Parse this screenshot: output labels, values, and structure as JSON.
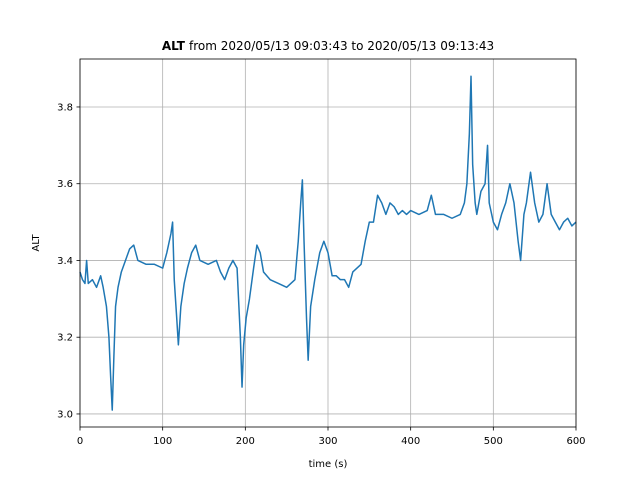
{
  "chart_data": {
    "type": "line",
    "title": {
      "bold": "ALT",
      "rest": "from 2020/05/13 09:03:43 to 2020/05/13 09:13:43"
    },
    "xlabel": "time (s)",
    "ylabel": "ALT",
    "x": [
      0,
      3,
      6,
      8,
      10,
      15,
      20,
      25,
      28,
      32,
      35,
      37,
      39,
      41,
      43,
      46,
      50,
      55,
      60,
      65,
      70,
      80,
      90,
      100,
      105,
      110,
      112,
      114,
      117,
      119,
      122,
      126,
      130,
      135,
      140,
      145,
      155,
      165,
      170,
      175,
      180,
      185,
      190,
      194,
      196,
      198,
      201,
      205,
      210,
      214,
      218,
      222,
      230,
      240,
      250,
      260,
      264,
      267,
      269,
      271,
      274,
      276,
      279,
      284,
      290,
      295,
      300,
      305,
      310,
      315,
      320,
      325,
      330,
      340,
      345,
      350,
      355,
      360,
      365,
      370,
      375,
      380,
      385,
      390,
      395,
      400,
      410,
      420,
      425,
      430,
      440,
      450,
      460,
      465,
      468,
      471,
      473,
      475,
      478,
      480,
      485,
      490,
      493,
      495,
      500,
      505,
      510,
      515,
      520,
      525,
      530,
      533,
      537,
      540,
      545,
      550,
      555,
      560,
      565,
      570,
      575,
      580,
      585,
      590,
      595,
      600
    ],
    "series": [
      {
        "name": "ALT",
        "color": "#1f77b4",
        "values": [
          3.37,
          3.35,
          3.34,
          3.4,
          3.34,
          3.35,
          3.33,
          3.36,
          3.33,
          3.28,
          3.2,
          3.1,
          3.01,
          3.15,
          3.28,
          3.33,
          3.37,
          3.4,
          3.43,
          3.44,
          3.4,
          3.39,
          3.39,
          3.38,
          3.42,
          3.47,
          3.5,
          3.35,
          3.25,
          3.18,
          3.28,
          3.34,
          3.38,
          3.42,
          3.44,
          3.4,
          3.39,
          3.4,
          3.37,
          3.35,
          3.38,
          3.4,
          3.38,
          3.2,
          3.07,
          3.18,
          3.25,
          3.3,
          3.38,
          3.44,
          3.42,
          3.37,
          3.35,
          3.34,
          3.33,
          3.35,
          3.45,
          3.55,
          3.61,
          3.45,
          3.25,
          3.14,
          3.28,
          3.35,
          3.42,
          3.45,
          3.42,
          3.36,
          3.36,
          3.35,
          3.35,
          3.33,
          3.37,
          3.39,
          3.45,
          3.5,
          3.5,
          3.57,
          3.55,
          3.52,
          3.55,
          3.54,
          3.52,
          3.53,
          3.52,
          3.53,
          3.52,
          3.53,
          3.57,
          3.52,
          3.52,
          3.51,
          3.52,
          3.55,
          3.6,
          3.73,
          3.88,
          3.65,
          3.55,
          3.52,
          3.58,
          3.6,
          3.7,
          3.55,
          3.5,
          3.48,
          3.52,
          3.55,
          3.6,
          3.55,
          3.45,
          3.4,
          3.52,
          3.55,
          3.63,
          3.55,
          3.5,
          3.52,
          3.6,
          3.52,
          3.5,
          3.48,
          3.5,
          3.51,
          3.49,
          3.5
        ]
      }
    ],
    "xlim": [
      0,
      600
    ],
    "xticks": [
      0,
      100,
      200,
      300,
      400,
      500,
      600
    ],
    "ylim": [
      2.966,
      3.925
    ],
    "yticks": [
      {
        "value": 3,
        "label": "3.0"
      },
      {
        "value": 3.2,
        "label": "3.2"
      },
      {
        "value": 3.4,
        "label": "3.4"
      },
      {
        "value": 3.6,
        "label": "3.6"
      },
      {
        "value": 3.8,
        "label": "3.8"
      }
    ],
    "grid": true
  }
}
